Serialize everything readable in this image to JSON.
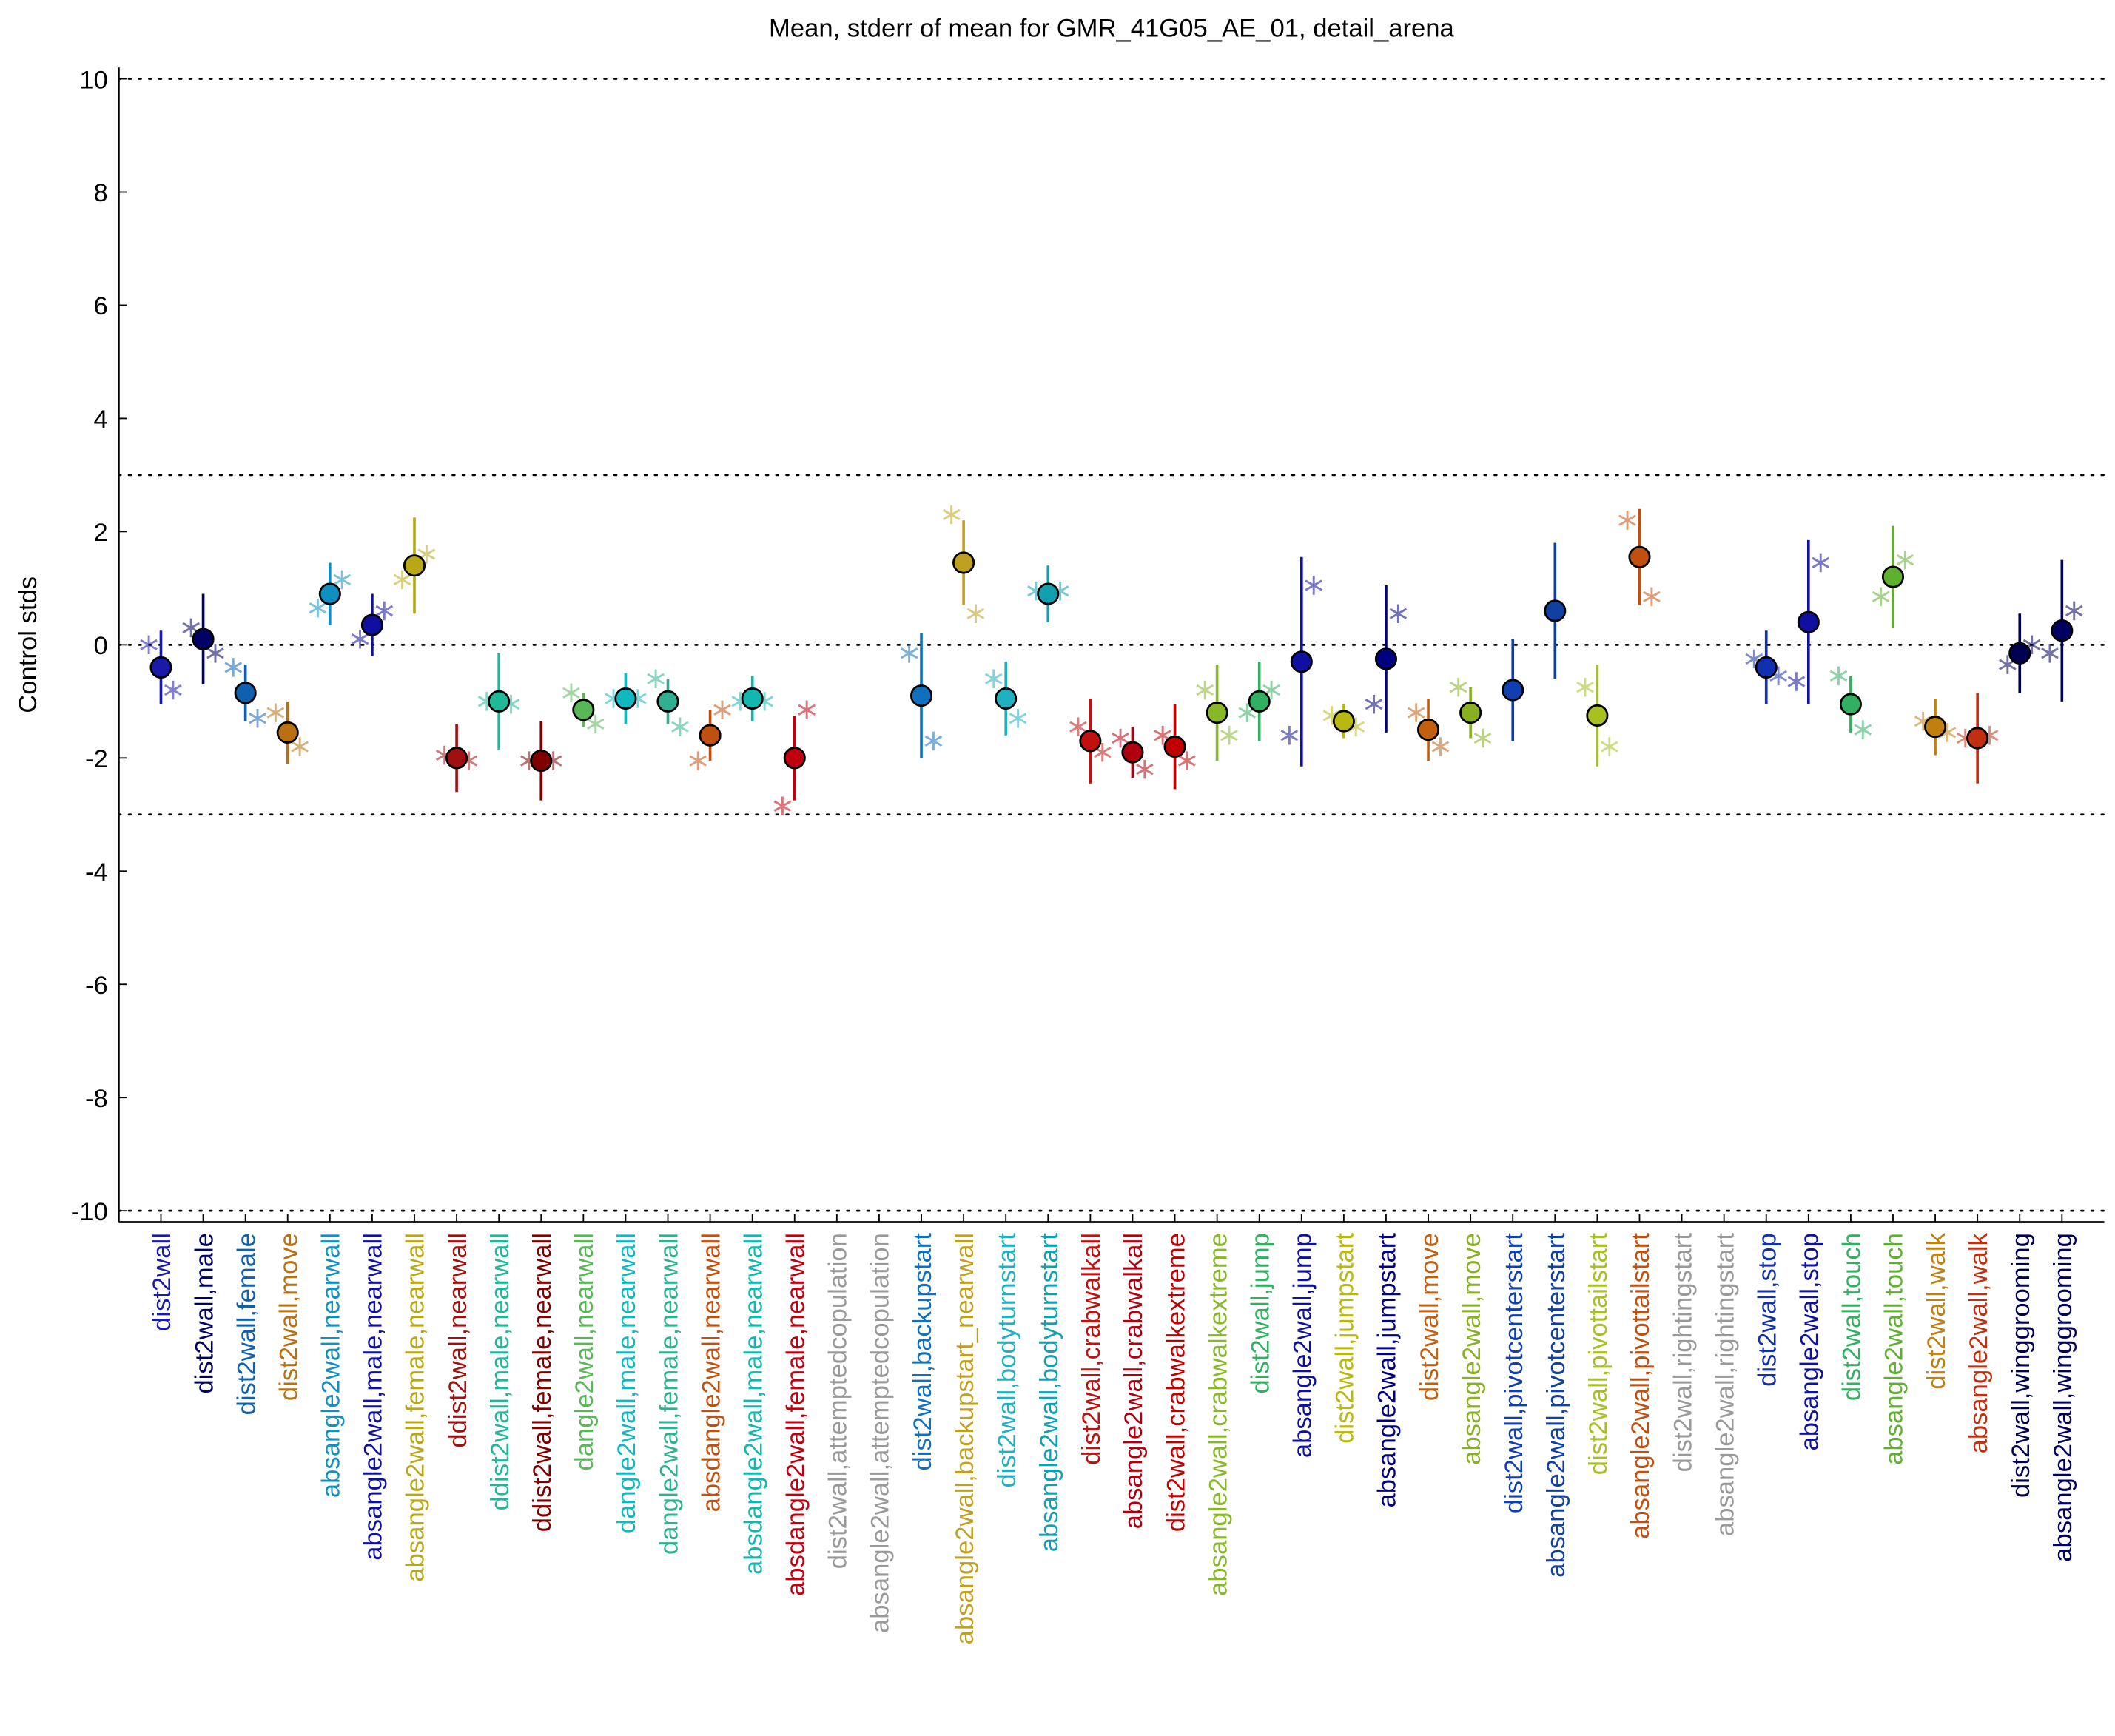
{
  "chart_data": {
    "type": "errorbar",
    "title": "Mean, stderr of mean for GMR_41G05_AE_01, detail_arena",
    "y_label": "Control stds",
    "categories": [
      "dist2wall",
      "dist2wall,male",
      "dist2wall,female",
      "dist2wall,move",
      "absangle2wall,nearwall",
      "absangle2wall,male,nearwall",
      "absangle2wall,female,nearwall",
      "ddist2wall,nearwall",
      "ddist2wall,male,nearwall",
      "ddist2wall,female,nearwall",
      "dangle2wall,nearwall",
      "dangle2wall,male,nearwall",
      "dangle2wall,female,nearwall",
      "absdangle2wall,nearwall",
      "absdangle2wall,male,nearwall",
      "absdangle2wall,female,nearwall",
      "dist2wall,attemptedcopulation",
      "absangle2wall,attemptedcopulation",
      "dist2wall,backupstart",
      "absangle2wall,backupstart_nearwall",
      "dist2wall,bodyturnstart",
      "absangle2wall,bodyturnstart",
      "dist2wall,crabwalkall",
      "absangle2wall,crabwalkall",
      "dist2wall,crabwalkextreme",
      "absangle2wall,crabwalkextreme",
      "dist2wall,jump",
      "absangle2wall,jump",
      "dist2wall,jumpstart",
      "absangle2wall,jumpstart",
      "dist2wall,move",
      "absangle2wall,move",
      "dist2wall,pivotcenterstart",
      "absangle2wall,pivotcenterstart",
      "dist2wall,pivottailstart",
      "absangle2wall,pivottailstart",
      "dist2wall,rightingstart",
      "absangle2wall,rightingstart",
      "dist2wall,stop",
      "absangle2wall,stop",
      "dist2wall,touch",
      "absangle2wall,touch",
      "dist2wall,walk",
      "absangle2wall,walk",
      "dist2wall,winggrooming",
      "absangle2wall,winggrooming"
    ],
    "colors": [
      "#1a1aa8",
      "#000066",
      "#1060b0",
      "#b87010",
      "#1090c0",
      "#1010a0",
      "#b8a818",
      "#a01010",
      "#20b898",
      "#800000",
      "#58b858",
      "#10b8c0",
      "#30b090",
      "#c05010",
      "#10b8b0",
      "#c00010",
      "#999999",
      "#999999",
      "#1070c0",
      "#c0a020",
      "#20b0c0",
      "#10a0b0",
      "#c01010",
      "#b00010",
      "#c00000",
      "#88b828",
      "#30b060",
      "#1010a0",
      "#b8b810",
      "#000080",
      "#c06010",
      "#88b020",
      "#1040b0",
      "#1040a0",
      "#a8c020",
      "#c05010",
      "#999999",
      "#999999",
      "#1030b0",
      "#1010a0",
      "#30b060",
      "#60b030",
      "#c08010",
      "#c03010",
      "#000050",
      "#000060"
    ],
    "values": [
      -0.4,
      0.1,
      -0.85,
      -1.55,
      0.9,
      0.35,
      1.4,
      -2.0,
      -1.0,
      -2.05,
      -1.15,
      -0.95,
      -1.0,
      -1.6,
      -0.95,
      -2.0,
      null,
      null,
      -0.9,
      1.45,
      -0.95,
      0.9,
      -1.7,
      -1.9,
      -1.8,
      -1.2,
      -1.0,
      -0.3,
      -1.35,
      -0.25,
      -1.5,
      -1.2,
      -0.8,
      0.6,
      -1.25,
      1.55,
      null,
      null,
      -0.4,
      0.4,
      -1.05,
      1.2,
      -1.45,
      -1.65,
      -0.15,
      0.25
    ],
    "errors": [
      0.65,
      0.8,
      0.5,
      0.55,
      0.55,
      0.55,
      0.85,
      0.6,
      0.85,
      0.7,
      0.3,
      0.45,
      0.4,
      0.45,
      0.4,
      0.75,
      null,
      null,
      1.1,
      0.75,
      0.65,
      0.5,
      0.75,
      0.45,
      0.75,
      0.85,
      0.7,
      1.85,
      0.3,
      1.3,
      0.55,
      0.45,
      0.9,
      1.2,
      0.9,
      0.85,
      null,
      null,
      0.65,
      1.45,
      0.5,
      0.9,
      0.5,
      0.8,
      0.7,
      1.25
    ],
    "markers_left": [
      0,
      0.3,
      -0.4,
      -1.2,
      0.65,
      0.1,
      1.15,
      -1.95,
      -1.0,
      -2.05,
      -0.85,
      -0.95,
      -0.6,
      -2.05,
      -1.0,
      -2.85,
      null,
      null,
      -0.15,
      2.3,
      -0.6,
      0.95,
      -1.45,
      -1.65,
      -1.6,
      -0.8,
      -1.2,
      -1.6,
      -1.25,
      -1.05,
      -1.2,
      -0.75,
      null,
      null,
      -0.75,
      2.2,
      null,
      null,
      -0.25,
      -0.65,
      -0.55,
      0.85,
      -1.35,
      -1.65,
      -0.35,
      -0.15
    ],
    "markers_right": [
      -0.8,
      -0.15,
      -1.3,
      -1.8,
      1.15,
      0.6,
      1.6,
      -2.05,
      -1.05,
      -2.05,
      -1.4,
      -0.95,
      -1.45,
      -1.15,
      -1.0,
      -1.15,
      null,
      null,
      -1.7,
      0.55,
      -1.3,
      0.95,
      -1.9,
      -2.2,
      -2.05,
      -1.6,
      -0.8,
      1.05,
      -1.45,
      0.55,
      -1.8,
      -1.65,
      null,
      null,
      -1.8,
      0.85,
      null,
      null,
      -0.55,
      1.45,
      -1.5,
      1.5,
      -1.55,
      -1.6,
      0,
      0.6
    ],
    "ylim": [
      -10.2,
      10.2
    ],
    "yticks": [
      -10,
      -8,
      -6,
      -4,
      -2,
      0,
      2,
      4,
      6,
      8,
      10
    ],
    "hlines": [
      -10,
      -3,
      0,
      3,
      10
    ]
  }
}
